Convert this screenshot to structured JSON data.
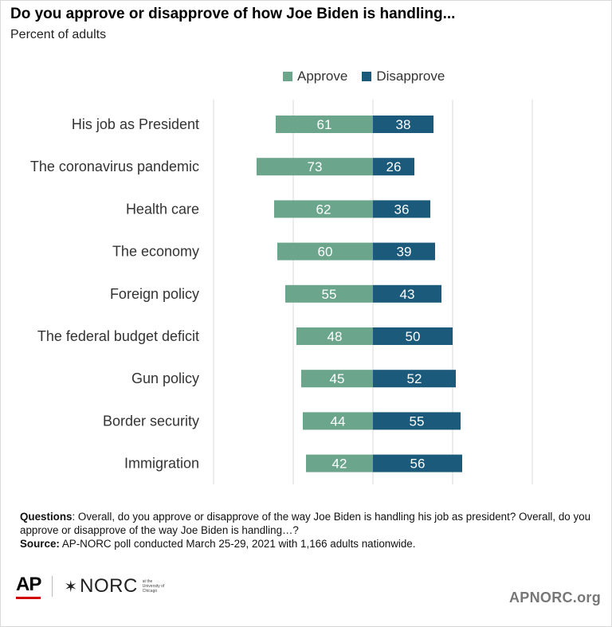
{
  "title": "Do you approve or disapprove of how Joe Biden is handling...",
  "subtitle": "Percent of adults",
  "colors": {
    "approve": "#6aa58c",
    "disapprove": "#1b5a7b",
    "grid": "#d9d9d9"
  },
  "chart_data": {
    "type": "bar",
    "orientation": "horizontal-diverging",
    "grid": true,
    "legend_position": "top",
    "categories": [
      "His job as President",
      "The coronavirus pandemic",
      "Health care",
      "The economy",
      "Foreign policy",
      "The federal budget deficit",
      "Gun policy",
      "Border security",
      "Immigration"
    ],
    "series": [
      {
        "name": "Approve",
        "values": [
          61,
          73,
          62,
          60,
          55,
          48,
          45,
          44,
          42
        ]
      },
      {
        "name": "Disapprove",
        "values": [
          38,
          26,
          36,
          39,
          43,
          50,
          52,
          55,
          56
        ]
      }
    ]
  },
  "notes": {
    "questions_label": "Questions",
    "questions_text": ": Overall, do you approve or disapprove of the way Joe Biden is handling his job as president? Overall, do you approve or disapprove of the way Joe Biden is handling…?",
    "source_label": "Source:",
    "source_text": " AP-NORC poll conducted March 25-29, 2021 with 1,166 adults nationwide."
  },
  "logos": {
    "ap": "AP",
    "norc": "NORC",
    "norc_sub": "at the University of Chicago"
  },
  "site": "APNORC.org"
}
